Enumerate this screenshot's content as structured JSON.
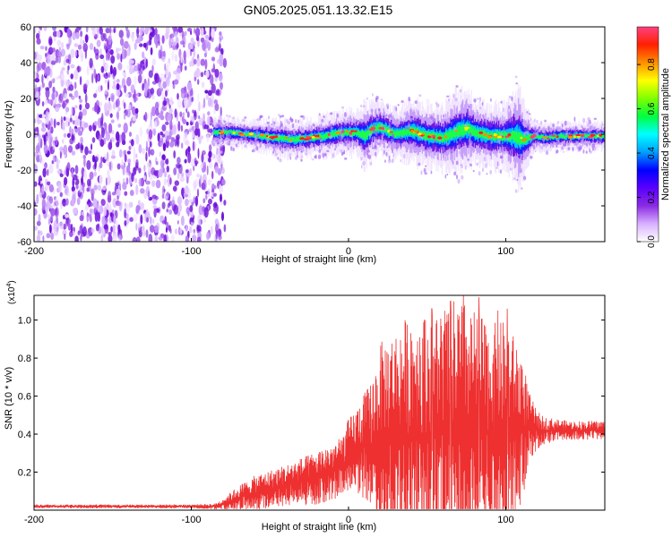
{
  "title": "GN05.2025.051.13.32.E15",
  "chart_data": [
    {
      "type": "heatmap",
      "xlabel": "Height of straight line (km)",
      "ylabel": "Frequency (Hz)",
      "xlim": [
        -200,
        163
      ],
      "ylim": [
        -60,
        60
      ],
      "x_ticks": [
        -200,
        -100,
        0,
        100
      ],
      "y_ticks": [
        -60,
        -40,
        -20,
        0,
        20,
        40,
        60
      ],
      "noise_region_x": [
        -200,
        -82
      ],
      "signal_start_x": -86,
      "ridge": {
        "x": [
          -86,
          -75,
          -65,
          -55,
          -45,
          -35,
          -25,
          -15,
          -5,
          5,
          10,
          15,
          20,
          25,
          30,
          40,
          50,
          60,
          70,
          75,
          80,
          90,
          100,
          105,
          108,
          112,
          118,
          125,
          135,
          145,
          155,
          163
        ],
        "freq": [
          1,
          1,
          0,
          -1,
          -2,
          -3,
          -2,
          -1,
          1,
          1,
          -1,
          3,
          4,
          2,
          0,
          2,
          -1,
          -2,
          2,
          3,
          1,
          -1,
          -1,
          -1,
          -2,
          -3,
          -1,
          -2,
          -1,
          -1,
          -1,
          -1
        ],
        "width": [
          6,
          6,
          6,
          7,
          8,
          8,
          8,
          9,
          9,
          10,
          14,
          12,
          12,
          12,
          10,
          14,
          14,
          14,
          18,
          18,
          14,
          14,
          14,
          20,
          24,
          14,
          6,
          6,
          6,
          6,
          6,
          6
        ]
      },
      "colorbar": {
        "label": "Normalized spectral amplitude",
        "ticks": [
          "0.0",
          "0.2",
          "0.4",
          "0.6",
          "0.8"
        ],
        "colors": [
          "#ffffff",
          "#d8b0ff",
          "#8a2be2",
          "#5a00ff",
          "#0000ff",
          "#00a0ff",
          "#00ffff",
          "#00ff40",
          "#80ff00",
          "#ffff00",
          "#ff9000",
          "#ff2000",
          "#ff4080"
        ]
      }
    },
    {
      "type": "line",
      "xlabel": "Height of straight line (km)",
      "ylabel": "SNR (10 * v/v)",
      "y_multiplier": "(x10",
      "y_multiplier_exp": "4",
      "y_multiplier_close": ")",
      "xlim": [
        -200,
        163
      ],
      "ylim": [
        0,
        1.13
      ],
      "x_ticks": [
        -200,
        -100,
        0,
        100
      ],
      "y_ticks": [
        "0.2",
        "0.4",
        "0.6",
        "0.8",
        "1.0"
      ],
      "y_tick_values": [
        0.2,
        0.4,
        0.6,
        0.8,
        1.0
      ],
      "color": "#ee3030",
      "envelope": {
        "x": [
          -200,
          -150,
          -100,
          -85,
          -80,
          -70,
          -60,
          -40,
          -20,
          -5,
          0,
          5,
          15,
          20,
          30,
          40,
          50,
          60,
          70,
          80,
          90,
          100,
          105,
          110,
          115,
          120,
          125,
          140,
          163
        ],
        "baseline": [
          0.02,
          0.02,
          0.02,
          0.02,
          0.03,
          0.06,
          0.09,
          0.13,
          0.17,
          0.22,
          0.28,
          0.32,
          0.34,
          0.38,
          0.4,
          0.4,
          0.4,
          0.4,
          0.4,
          0.4,
          0.4,
          0.4,
          0.42,
          0.42,
          0.44,
          0.42,
          0.42,
          0.42,
          0.42
        ],
        "amplitude": [
          0.01,
          0.01,
          0.01,
          0.015,
          0.03,
          0.07,
          0.09,
          0.11,
          0.14,
          0.16,
          0.2,
          0.22,
          0.35,
          0.5,
          0.55,
          0.65,
          0.62,
          0.68,
          0.72,
          0.65,
          0.58,
          0.6,
          0.5,
          0.42,
          0.18,
          0.1,
          0.07,
          0.05,
          0.05
        ],
        "peaks": [
          {
            "x": 73,
            "y": 1.13
          },
          {
            "x": 65,
            "y": 1.1
          },
          {
            "x": 83,
            "y": 1.12
          },
          {
            "x": 53,
            "y": 1.06
          },
          {
            "x": 49,
            "y": 1.0
          },
          {
            "x": 101,
            "y": 1.06
          },
          {
            "x": 95,
            "y": 1.05
          },
          {
            "x": 59,
            "y": 0.97
          },
          {
            "x": 37,
            "y": 0.88
          }
        ]
      }
    }
  ]
}
